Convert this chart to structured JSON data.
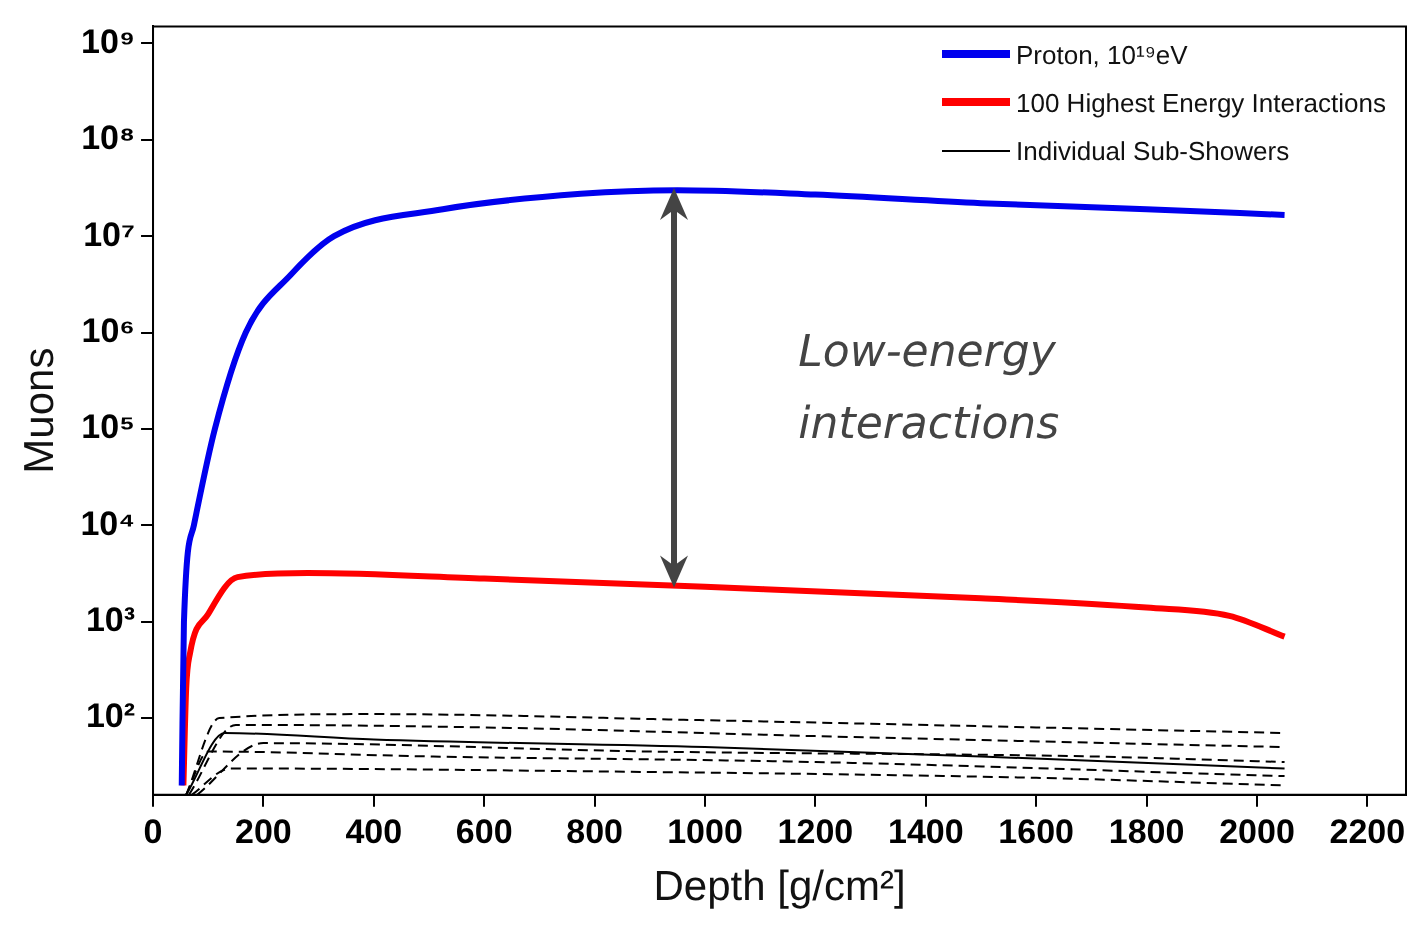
{
  "chart_data": {
    "type": "line",
    "xlabel": "Depth [g/cm²]",
    "ylabel": "Muons",
    "log": "y",
    "xlim": [
      0,
      2270
    ],
    "xticks": [
      0,
      200,
      400,
      600,
      800,
      1000,
      1200,
      1400,
      1600,
      1800,
      2000,
      2200
    ],
    "ylim": [
      16,
      1500000000
    ],
    "yticks": [
      {
        "value": 100,
        "label": "10²"
      },
      {
        "value": 1000,
        "label": "10³"
      },
      {
        "value": 10000,
        "label": "10⁴"
      },
      {
        "value": 100000,
        "label": "10⁵"
      },
      {
        "value": 1000000,
        "label": "10⁶"
      },
      {
        "value": 10000000,
        "label": "10⁷"
      },
      {
        "value": 100000000,
        "label": "10⁸"
      },
      {
        "value": 1000000000,
        "label": "10⁹"
      }
    ],
    "grid": false,
    "legend": "top right",
    "marker": "none",
    "annotations": [
      "Low-energy interactions"
    ],
    "series": [
      {
        "name": "Proton, 10¹⁹eV",
        "color": "#0000ee",
        "x": [
          52,
          56,
          74,
          112,
          168,
          250,
          328,
          525,
          775,
          950,
          1200,
          1500,
          1800,
          2050
        ],
        "values": [
          20,
          1000,
          10000,
          100000,
          1000000,
          4000000,
          10000000,
          19000000,
          27500000,
          30000000,
          27000000,
          22000000,
          19000000,
          16600000
        ]
      },
      {
        "name": "100 Highest Energy Interactions",
        "color": "#ff0000",
        "x": [
          55,
          60,
          67,
          100,
          153,
          280,
          600,
          1000,
          1500,
          1800,
          1950,
          2050
        ],
        "values": [
          20,
          200,
          470,
          1200,
          2900,
          3200,
          2800,
          2300,
          1750,
          1400,
          1150,
          700
        ]
      },
      {
        "name": "Individual Sub-Showers",
        "color": "#000000",
        "line_style": "solid",
        "x": [
          60,
          130,
          400,
          1000,
          1500,
          2050
        ],
        "values": [
          16,
          70,
          60,
          50,
          40,
          30
        ]
      },
      {
        "color": "#000000",
        "line_style": "dashed",
        "x": [
          60,
          120,
          400,
          1000,
          1600,
          2050
        ],
        "values": [
          16,
          100,
          110,
          95,
          80,
          70
        ]
      },
      {
        "color": "#000000",
        "line_style": "dashed",
        "x": [
          65,
          150,
          600,
          1200,
          2050
        ],
        "values": [
          16,
          85,
          80,
          65,
          50
        ]
      },
      {
        "color": "#000000",
        "line_style": "dashed",
        "x": [
          60,
          100,
          500,
          1200,
          2050
        ],
        "values": [
          16,
          45,
          40,
          35,
          25
        ]
      },
      {
        "color": "#000000",
        "line_style": "dashed",
        "x": [
          70,
          140,
          800,
          1600,
          2050
        ],
        "values": [
          16,
          30,
          28,
          24,
          20
        ]
      },
      {
        "color": "#000000",
        "line_style": "dashed",
        "x": [
          80,
          200,
          900,
          1700,
          2050
        ],
        "values": [
          16,
          55,
          45,
          40,
          35
        ]
      }
    ]
  }
}
